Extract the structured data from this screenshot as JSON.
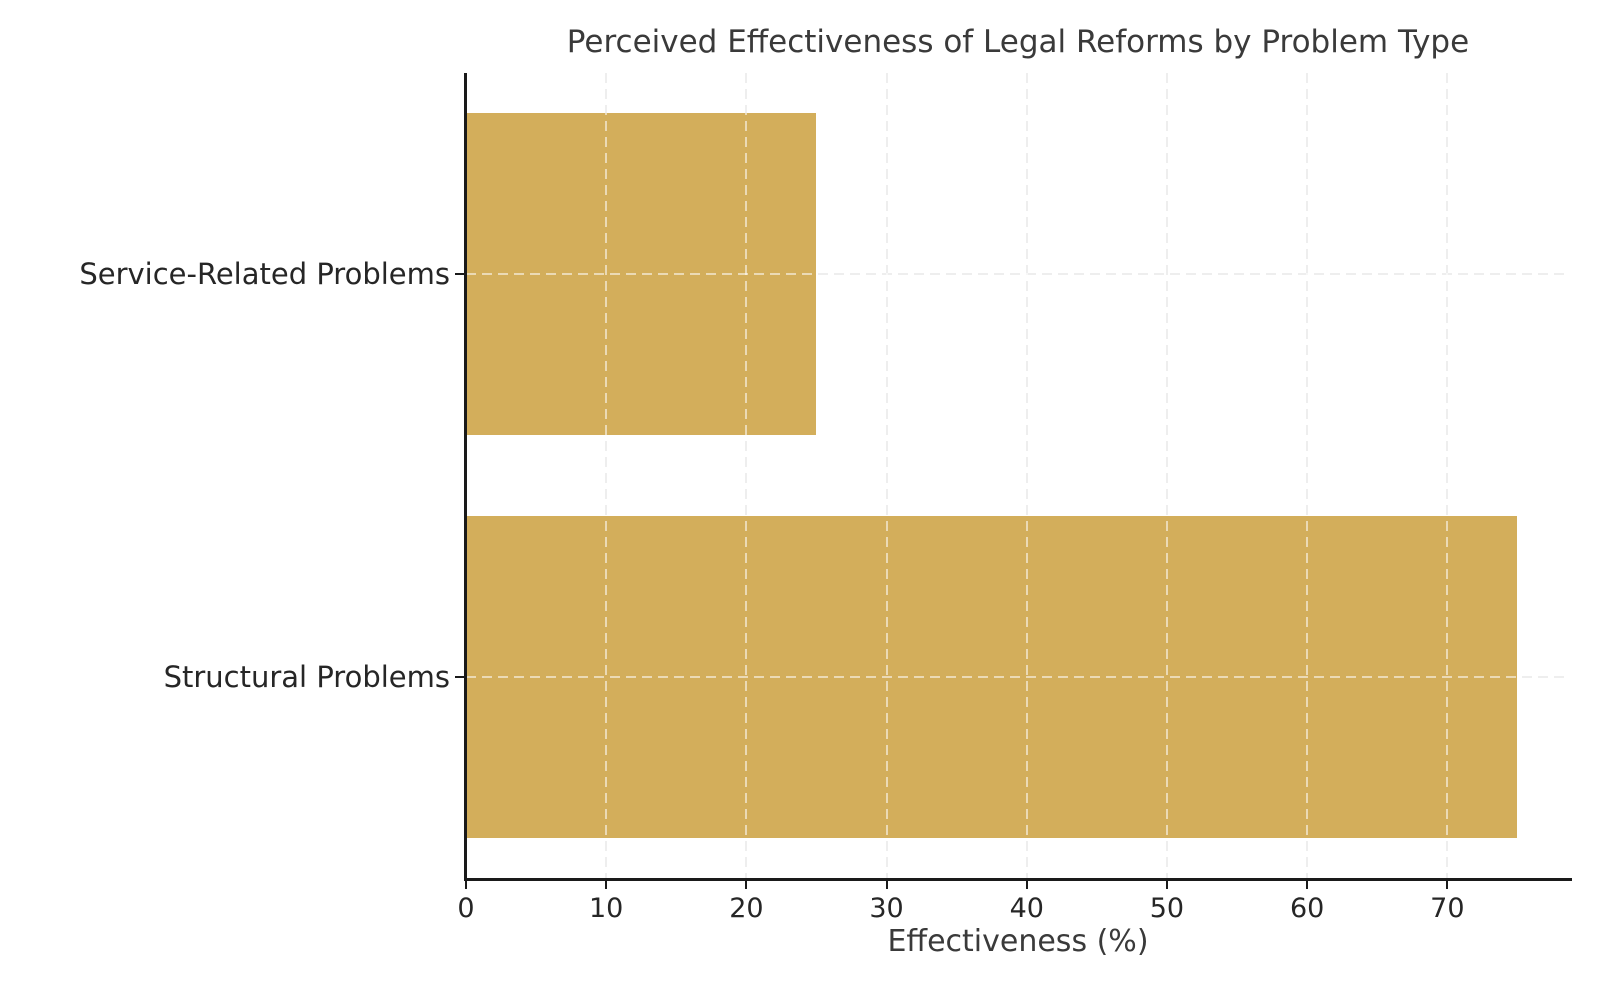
{
  "chart_data": {
    "type": "bar",
    "orientation": "horizontal",
    "title": "Perceived Effectiveness of Legal Reforms by Problem Type",
    "xlabel": "Effectiveness (%)",
    "categories": [
      "Service-Related Problems",
      "Structural Problems"
    ],
    "values": [
      25,
      75
    ],
    "xticks": [
      0,
      10,
      20,
      30,
      40,
      50,
      60,
      70
    ],
    "xlim": [
      0,
      78.75
    ],
    "bar_color": "#d3ae5b",
    "bar_height_fraction": 0.8,
    "grid": "dashed light-gray vertical at x ticks and horizontal at category centers",
    "legend_position": "none",
    "background_color": "#ffffff",
    "axis_color": "#1a1a1a",
    "text_color": "#262626"
  }
}
